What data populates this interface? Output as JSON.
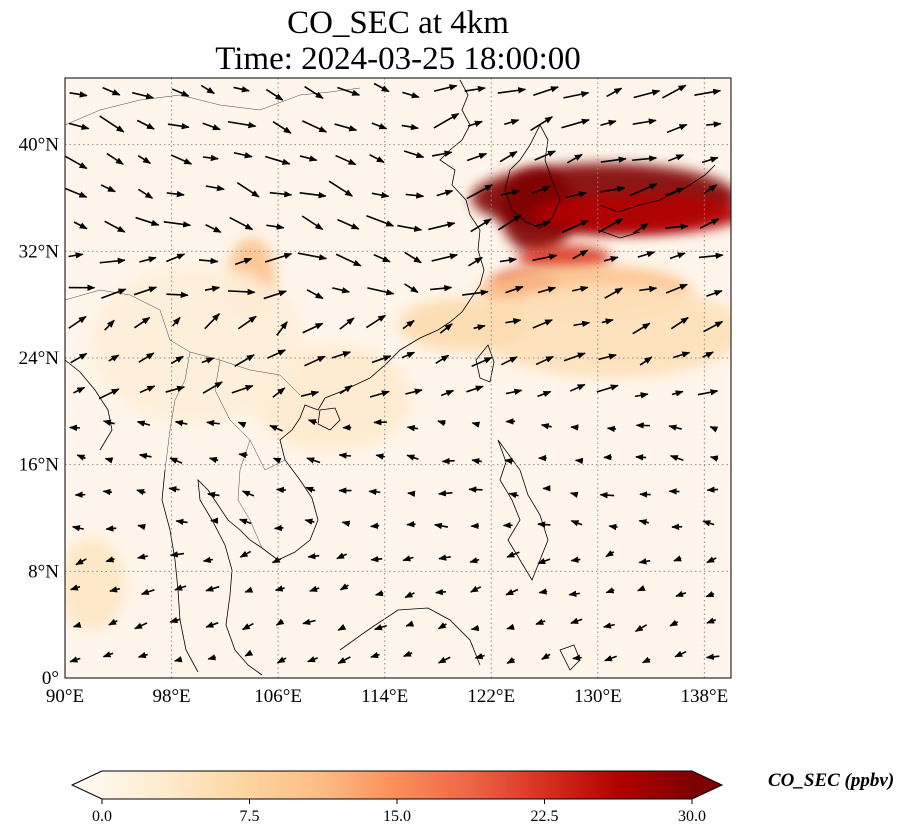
{
  "title": {
    "line1": "CO_SEC at 4km",
    "line2": "Time: 2024-03-25 18:00:00"
  },
  "map": {
    "projection": "PlateCarree",
    "extent": {
      "lon": [
        90,
        140
      ],
      "lat": [
        0,
        45
      ]
    },
    "gridlines": {
      "style": "dotted",
      "color": "#8a8a8a"
    },
    "x_ticks": [
      {
        "lon": 90,
        "label": "90°E"
      },
      {
        "lon": 98,
        "label": "98°E"
      },
      {
        "lon": 106,
        "label": "106°E"
      },
      {
        "lon": 114,
        "label": "114°E"
      },
      {
        "lon": 122,
        "label": "122°E"
      },
      {
        "lon": 130,
        "label": "130°E"
      },
      {
        "lon": 138,
        "label": "138°E"
      }
    ],
    "y_ticks": [
      {
        "lat": 40,
        "label": "40°N"
      },
      {
        "lat": 32,
        "label": "32°N"
      },
      {
        "lat": 24,
        "label": "24°N"
      },
      {
        "lat": 16,
        "label": "16°N"
      },
      {
        "lat": 8,
        "label": "8°N"
      },
      {
        "lat": 0,
        "label": "0°"
      }
    ],
    "co_sec_field": [
      {
        "lon": 130.5,
        "lat": 36.0,
        "rlon": 10.0,
        "rlat": 2.6,
        "value": 30
      },
      {
        "lon": 125.5,
        "lat": 35.0,
        "rlon": 2.8,
        "rlat": 3.2,
        "value": 30
      },
      {
        "lon": 133.0,
        "lat": 34.8,
        "rlon": 8.0,
        "rlat": 1.5,
        "value": 26
      },
      {
        "lon": 127.5,
        "lat": 31.5,
        "rlon": 3.5,
        "rlat": 1.0,
        "value": 22
      },
      {
        "lon": 124.5,
        "lat": 29.5,
        "rlon": 2.4,
        "rlat": 1.0,
        "value": 24
      },
      {
        "lon": 129.0,
        "lat": 29.0,
        "rlon": 8.0,
        "rlat": 2.0,
        "value": 10
      },
      {
        "lon": 131.0,
        "lat": 26.0,
        "rlon": 10.0,
        "rlat": 3.5,
        "value": 5
      },
      {
        "lon": 120.0,
        "lat": 26.5,
        "rlon": 5.0,
        "rlat": 2.0,
        "value": 6
      },
      {
        "lon": 104.0,
        "lat": 30.0,
        "rlon": 1.8,
        "rlat": 3.0,
        "value": 10
      },
      {
        "lon": 110.0,
        "lat": 21.0,
        "rlon": 6.0,
        "rlat": 4.0,
        "value": 3
      },
      {
        "lon": 92.0,
        "lat": 7.0,
        "rlon": 2.5,
        "rlat": 3.5,
        "value": 4
      },
      {
        "lon": 100.0,
        "lat": 25.0,
        "rlon": 8.0,
        "rlat": 6.0,
        "value": 2
      }
    ],
    "wind_arrows": {
      "lon_start": 91,
      "lon_step": 2.5,
      "lat_start": 1.5,
      "lat_step": 2.5,
      "description_free": true
    }
  },
  "colorbar": {
    "colormap": "OrRd",
    "colors": [
      "#fff7ec",
      "#fee8c8",
      "#fdd49e",
      "#fdbb84",
      "#fc8d59",
      "#ef6548",
      "#d7301f",
      "#b30000",
      "#7f0000"
    ],
    "vmin": 0,
    "vmax": 30,
    "extend": "both",
    "ticks": [
      {
        "value": 0,
        "label": "0.0"
      },
      {
        "value": 7.5,
        "label": "7.5"
      },
      {
        "value": 15,
        "label": "15.0"
      },
      {
        "value": 22.5,
        "label": "22.5"
      },
      {
        "value": 30,
        "label": "30.0"
      }
    ],
    "label": "CO_SEC (ppbv)"
  }
}
